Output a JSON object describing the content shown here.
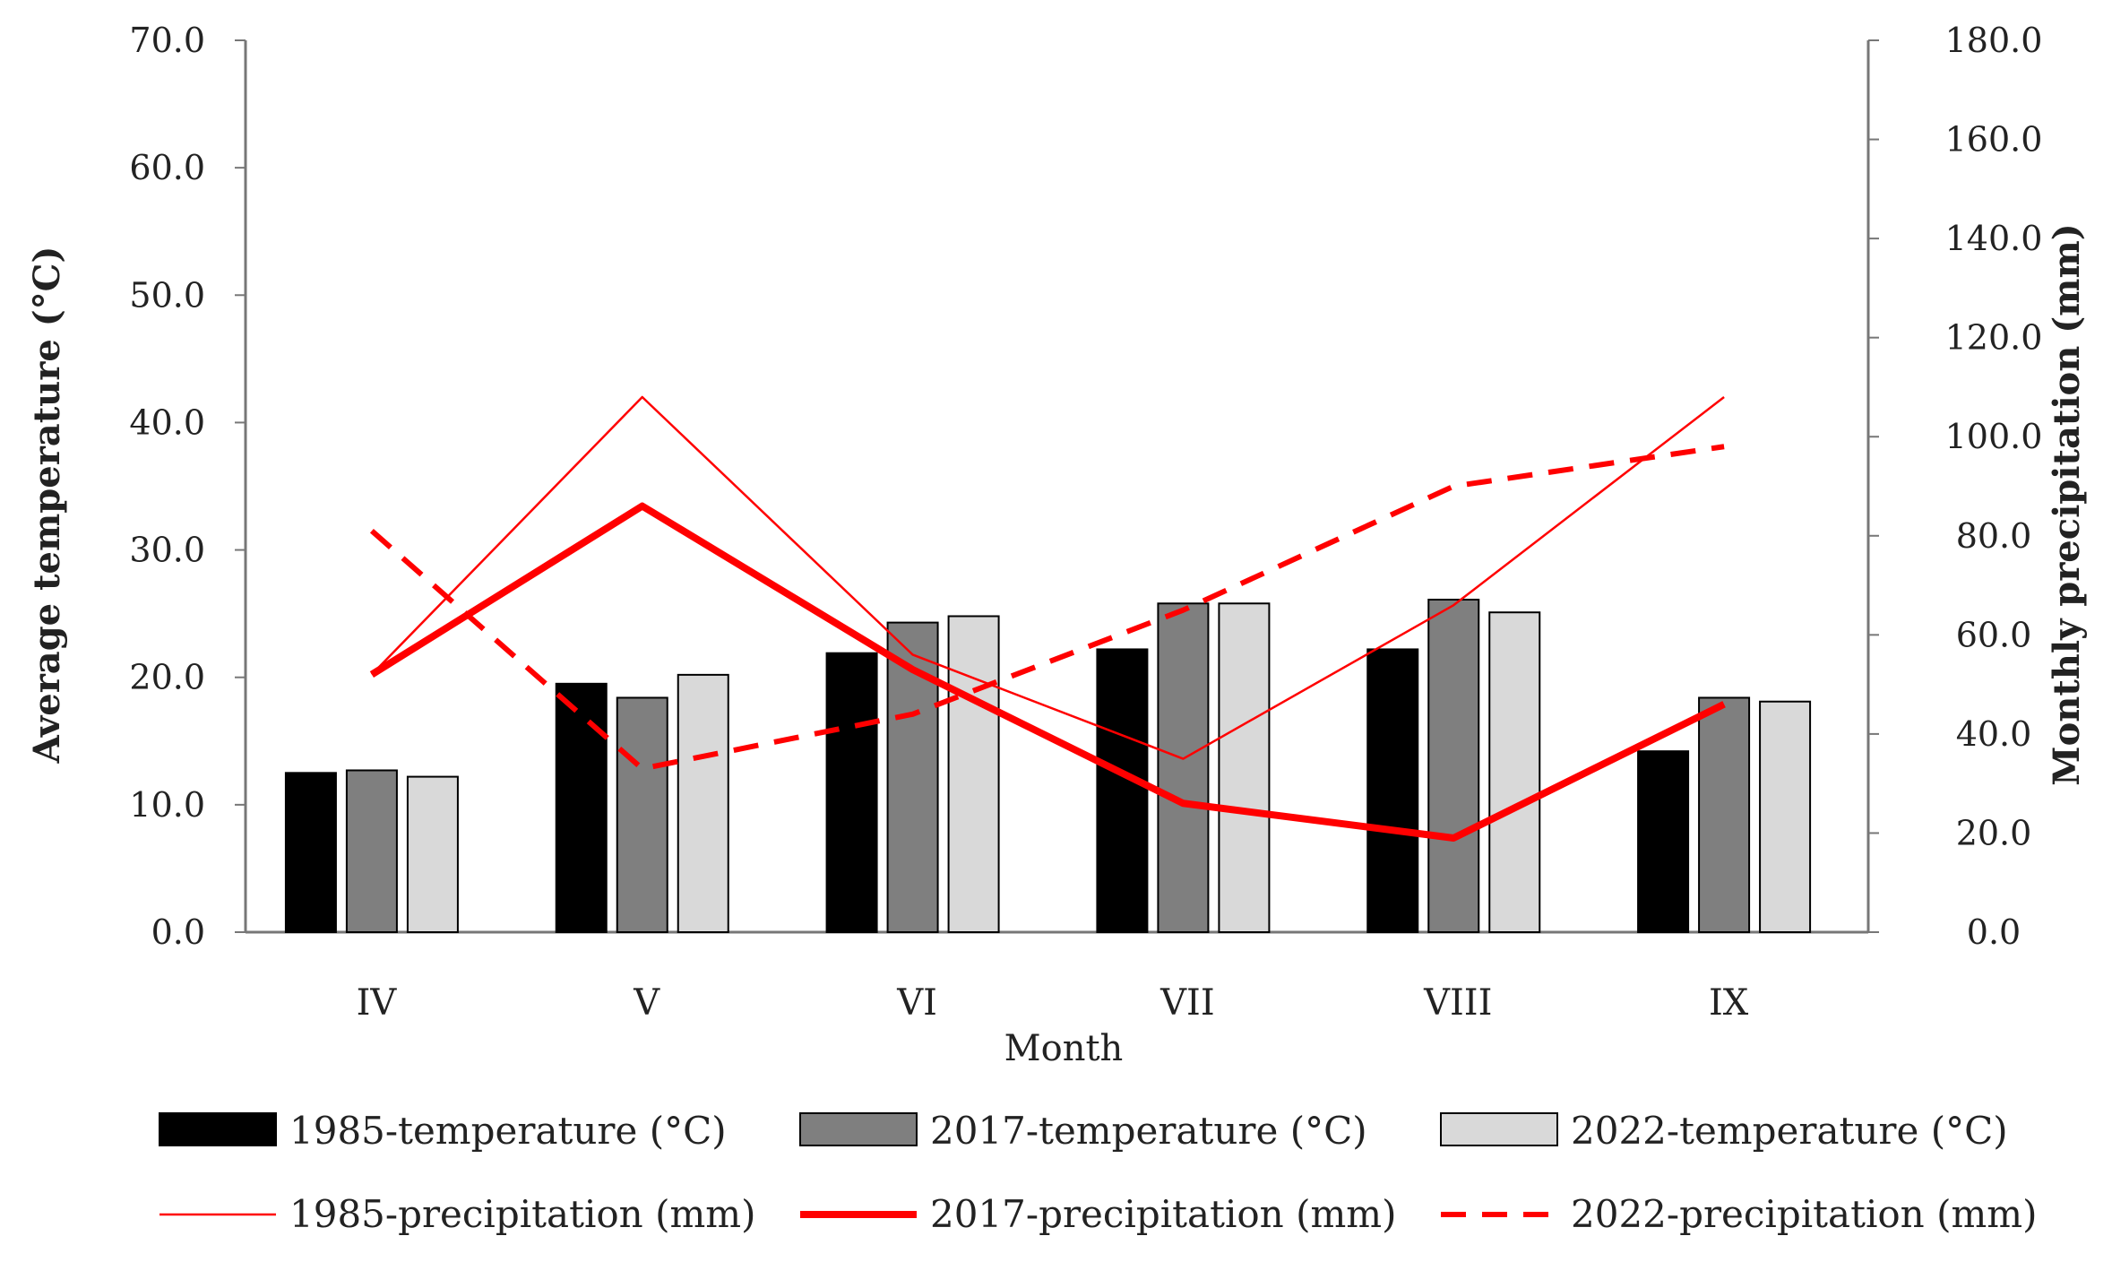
{
  "chart_data": {
    "type": "bar+line",
    "xlabel": "Month",
    "ylabel": "Average temperature (°C)",
    "y2label": "Monthly precipitation (mm)",
    "ylim": [
      0,
      70
    ],
    "y2lim": [
      0,
      180
    ],
    "yticks": [
      "0.0",
      "10.0",
      "20.0",
      "30.0",
      "40.0",
      "50.0",
      "60.0",
      "70.0"
    ],
    "y2ticks": [
      "0.0",
      "20.0",
      "40.0",
      "60.0",
      "80.0",
      "100.0",
      "120.0",
      "140.0",
      "160.0",
      "180.0"
    ],
    "categories": [
      "IV",
      "V",
      "VI",
      "VII",
      "VIII",
      "IX"
    ],
    "bar_series": [
      {
        "name": "1985-temperature (°C)",
        "color": "#000000",
        "values": [
          12.5,
          19.5,
          21.9,
          22.2,
          22.2,
          14.2
        ]
      },
      {
        "name": "2017-temperature (°C)",
        "color": "#7f7f7f",
        "values": [
          12.7,
          18.4,
          24.3,
          25.8,
          26.1,
          18.4
        ]
      },
      {
        "name": "2022-temperature (°C)",
        "color": "#d9d9d9",
        "values": [
          12.2,
          20.2,
          24.8,
          25.8,
          25.1,
          18.1
        ]
      }
    ],
    "line_series": [
      {
        "name": "1985-precipitation (mm)",
        "color": "#ff0000",
        "style": "thin",
        "values": [
          52.0,
          108.0,
          56.0,
          35.0,
          66.0,
          108.0
        ]
      },
      {
        "name": "2017-precipitation (mm)",
        "color": "#ff0000",
        "style": "thick",
        "values": [
          52.0,
          86.0,
          53.0,
          26.0,
          19.0,
          46.0
        ]
      },
      {
        "name": "2022-precipitation (mm)",
        "color": "#ff0000",
        "style": "dashed",
        "values": [
          81.0,
          33.0,
          44.0,
          65.0,
          90.0,
          98.0
        ]
      }
    ]
  }
}
